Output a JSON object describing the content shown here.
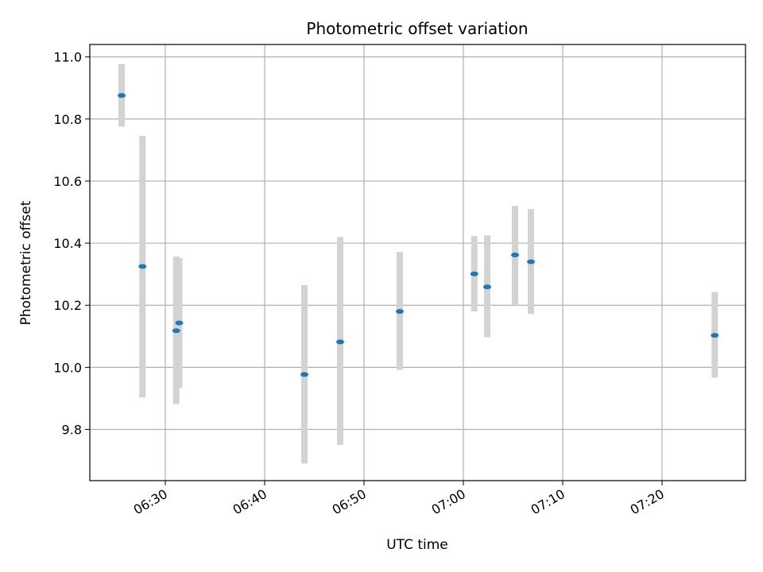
{
  "chart_data": {
    "type": "scatter",
    "title": "Photometric offset variation",
    "xlabel": "UTC time",
    "ylabel": "Photometric offset",
    "x_ticks": [
      "06:30",
      "06:40",
      "06:50",
      "07:00",
      "07:10",
      "07:20"
    ],
    "y_ticks": [
      "9.8",
      "10.0",
      "10.2",
      "10.4",
      "10.6",
      "10.8",
      "11.0"
    ],
    "x_tick_minutes": [
      390,
      400,
      410,
      420,
      430,
      440
    ],
    "y_tick_values": [
      9.8,
      10.0,
      10.2,
      10.4,
      10.6,
      10.8,
      11.0
    ],
    "xlim_minutes": [
      382.4,
      448.4
    ],
    "ylim": [
      9.635,
      11.04
    ],
    "grid": true,
    "marker_color": "#1f77b4",
    "errorbar_color": "#d3d3d3",
    "points": [
      {
        "time": "06:25:36",
        "minute": 385.6,
        "y": 10.876,
        "ylow": 10.775,
        "yhigh": 10.977
      },
      {
        "time": "06:27:42",
        "minute": 387.7,
        "y": 10.325,
        "ylow": 9.903,
        "yhigh": 10.746
      },
      {
        "time": "06:31:06",
        "minute": 391.1,
        "y": 10.118,
        "ylow": 9.882,
        "yhigh": 10.357
      },
      {
        "time": "06:31:24",
        "minute": 391.4,
        "y": 10.143,
        "ylow": 9.933,
        "yhigh": 10.352
      },
      {
        "time": "06:44:00",
        "minute": 404.0,
        "y": 9.977,
        "ylow": 9.69,
        "yhigh": 10.265
      },
      {
        "time": "06:47:36",
        "minute": 407.6,
        "y": 10.082,
        "ylow": 9.75,
        "yhigh": 10.42
      },
      {
        "time": "06:53:36",
        "minute": 413.6,
        "y": 10.18,
        "ylow": 9.992,
        "yhigh": 10.372
      },
      {
        "time": "07:01:06",
        "minute": 421.1,
        "y": 10.301,
        "ylow": 10.18,
        "yhigh": 10.423
      },
      {
        "time": "07:02:24",
        "minute": 422.4,
        "y": 10.259,
        "ylow": 10.097,
        "yhigh": 10.425
      },
      {
        "time": "07:05:12",
        "minute": 425.2,
        "y": 10.362,
        "ylow": 10.2,
        "yhigh": 10.52
      },
      {
        "time": "07:06:48",
        "minute": 426.8,
        "y": 10.34,
        "ylow": 10.172,
        "yhigh": 10.51
      },
      {
        "time": "07:25:18",
        "minute": 445.3,
        "y": 10.103,
        "ylow": 9.967,
        "yhigh": 10.243
      }
    ]
  }
}
